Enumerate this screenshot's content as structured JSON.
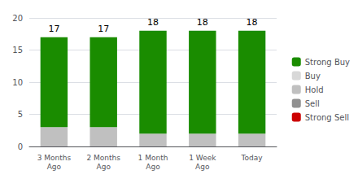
{
  "chart_data": {
    "type": "bar",
    "stacked": true,
    "categories": [
      "3 Months\nAgo",
      "2 Months\nAgo",
      "1 Month\nAgo",
      "1 Week\nAgo",
      "Today"
    ],
    "series": [
      {
        "name": "Strong Buy",
        "color": "#1a8c00",
        "values": [
          14,
          14,
          16,
          16,
          16
        ]
      },
      {
        "name": "Buy",
        "color": "#d8d8d8",
        "values": [
          0,
          0,
          0,
          0,
          0
        ]
      },
      {
        "name": "Hold",
        "color": "#c0c0c0",
        "values": [
          3,
          3,
          2,
          2,
          2
        ]
      },
      {
        "name": "Sell",
        "color": "#909090",
        "values": [
          0,
          0,
          0,
          0,
          0
        ]
      },
      {
        "name": "Strong Sell",
        "color": "#cc0000",
        "values": [
          0,
          0,
          0,
          0,
          0
        ]
      }
    ],
    "totals": [
      17,
      17,
      18,
      18,
      18
    ],
    "ylim": [
      0,
      20
    ],
    "yticks": [
      0,
      5,
      10,
      15,
      20
    ],
    "grid": true,
    "legend": "right"
  }
}
